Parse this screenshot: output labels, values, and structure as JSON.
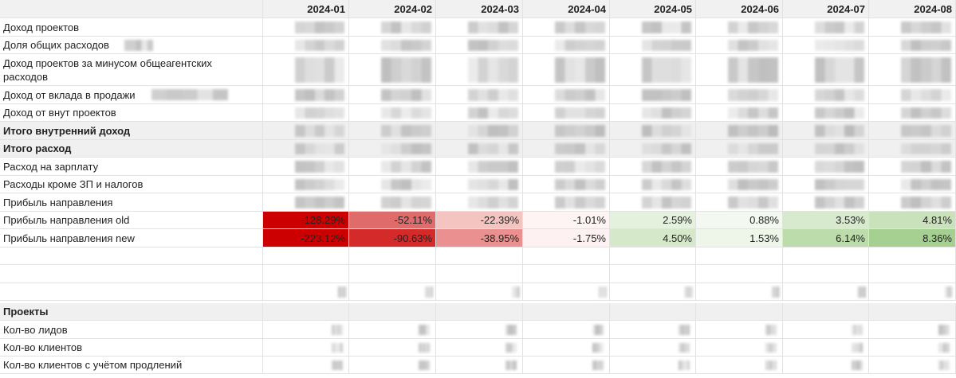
{
  "header": {
    "months": [
      "2024-01",
      "2024-02",
      "2024-03",
      "2024-04",
      "2024-05",
      "2024-06",
      "2024-07",
      "2024-08"
    ]
  },
  "table": {
    "rows": [
      {
        "label": "Доход проектов"
      },
      {
        "label": "Доля общих расходов"
      },
      {
        "label": "Доход проектов за минусом общеагентских расходов"
      },
      {
        "label": "Доход от вклада в продажи"
      },
      {
        "label": "Доход от внут проектов"
      },
      {
        "label": "Итого внутренний доход",
        "bold": true,
        "shaded": true
      },
      {
        "label": "Итого расход",
        "bold": true,
        "shaded": true
      },
      {
        "label": "Расход на зарплату"
      },
      {
        "label": "Расходы кроме ЗП и налогов"
      },
      {
        "label": "Прибыль направления"
      },
      {
        "label": "Прибыль направления old",
        "values": [
          "-128.29%",
          "-52.11%",
          "-22.39%",
          "-1.01%",
          "2.59%",
          "0.88%",
          "3.53%",
          "4.81%"
        ],
        "fills": [
          "#cc0000",
          "#e06b6b",
          "#f4c4c0",
          "#fdf4f3",
          "#e4f1dd",
          "#f3f9f0",
          "#d7eace",
          "#c9e2bc"
        ]
      },
      {
        "label": "Прибыль направления new",
        "values": [
          "-223.12%",
          "-90.63%",
          "-38.95%",
          "-1.75%",
          "4.50%",
          "1.53%",
          "6.14%",
          "8.36%"
        ],
        "fills": [
          "#cc0000",
          "#d42a2a",
          "#ea9090",
          "#fdf2f1",
          "#d5e9ca",
          "#edf6e9",
          "#bcdcac",
          "#a5d091"
        ]
      },
      {
        "label": "Проекты",
        "bold": true,
        "shaded": true
      },
      {
        "label": "Кол-во лидов"
      },
      {
        "label": "Кол-во клиентов"
      },
      {
        "label": "Кол-во клиентов с учётом продлений"
      }
    ]
  }
}
